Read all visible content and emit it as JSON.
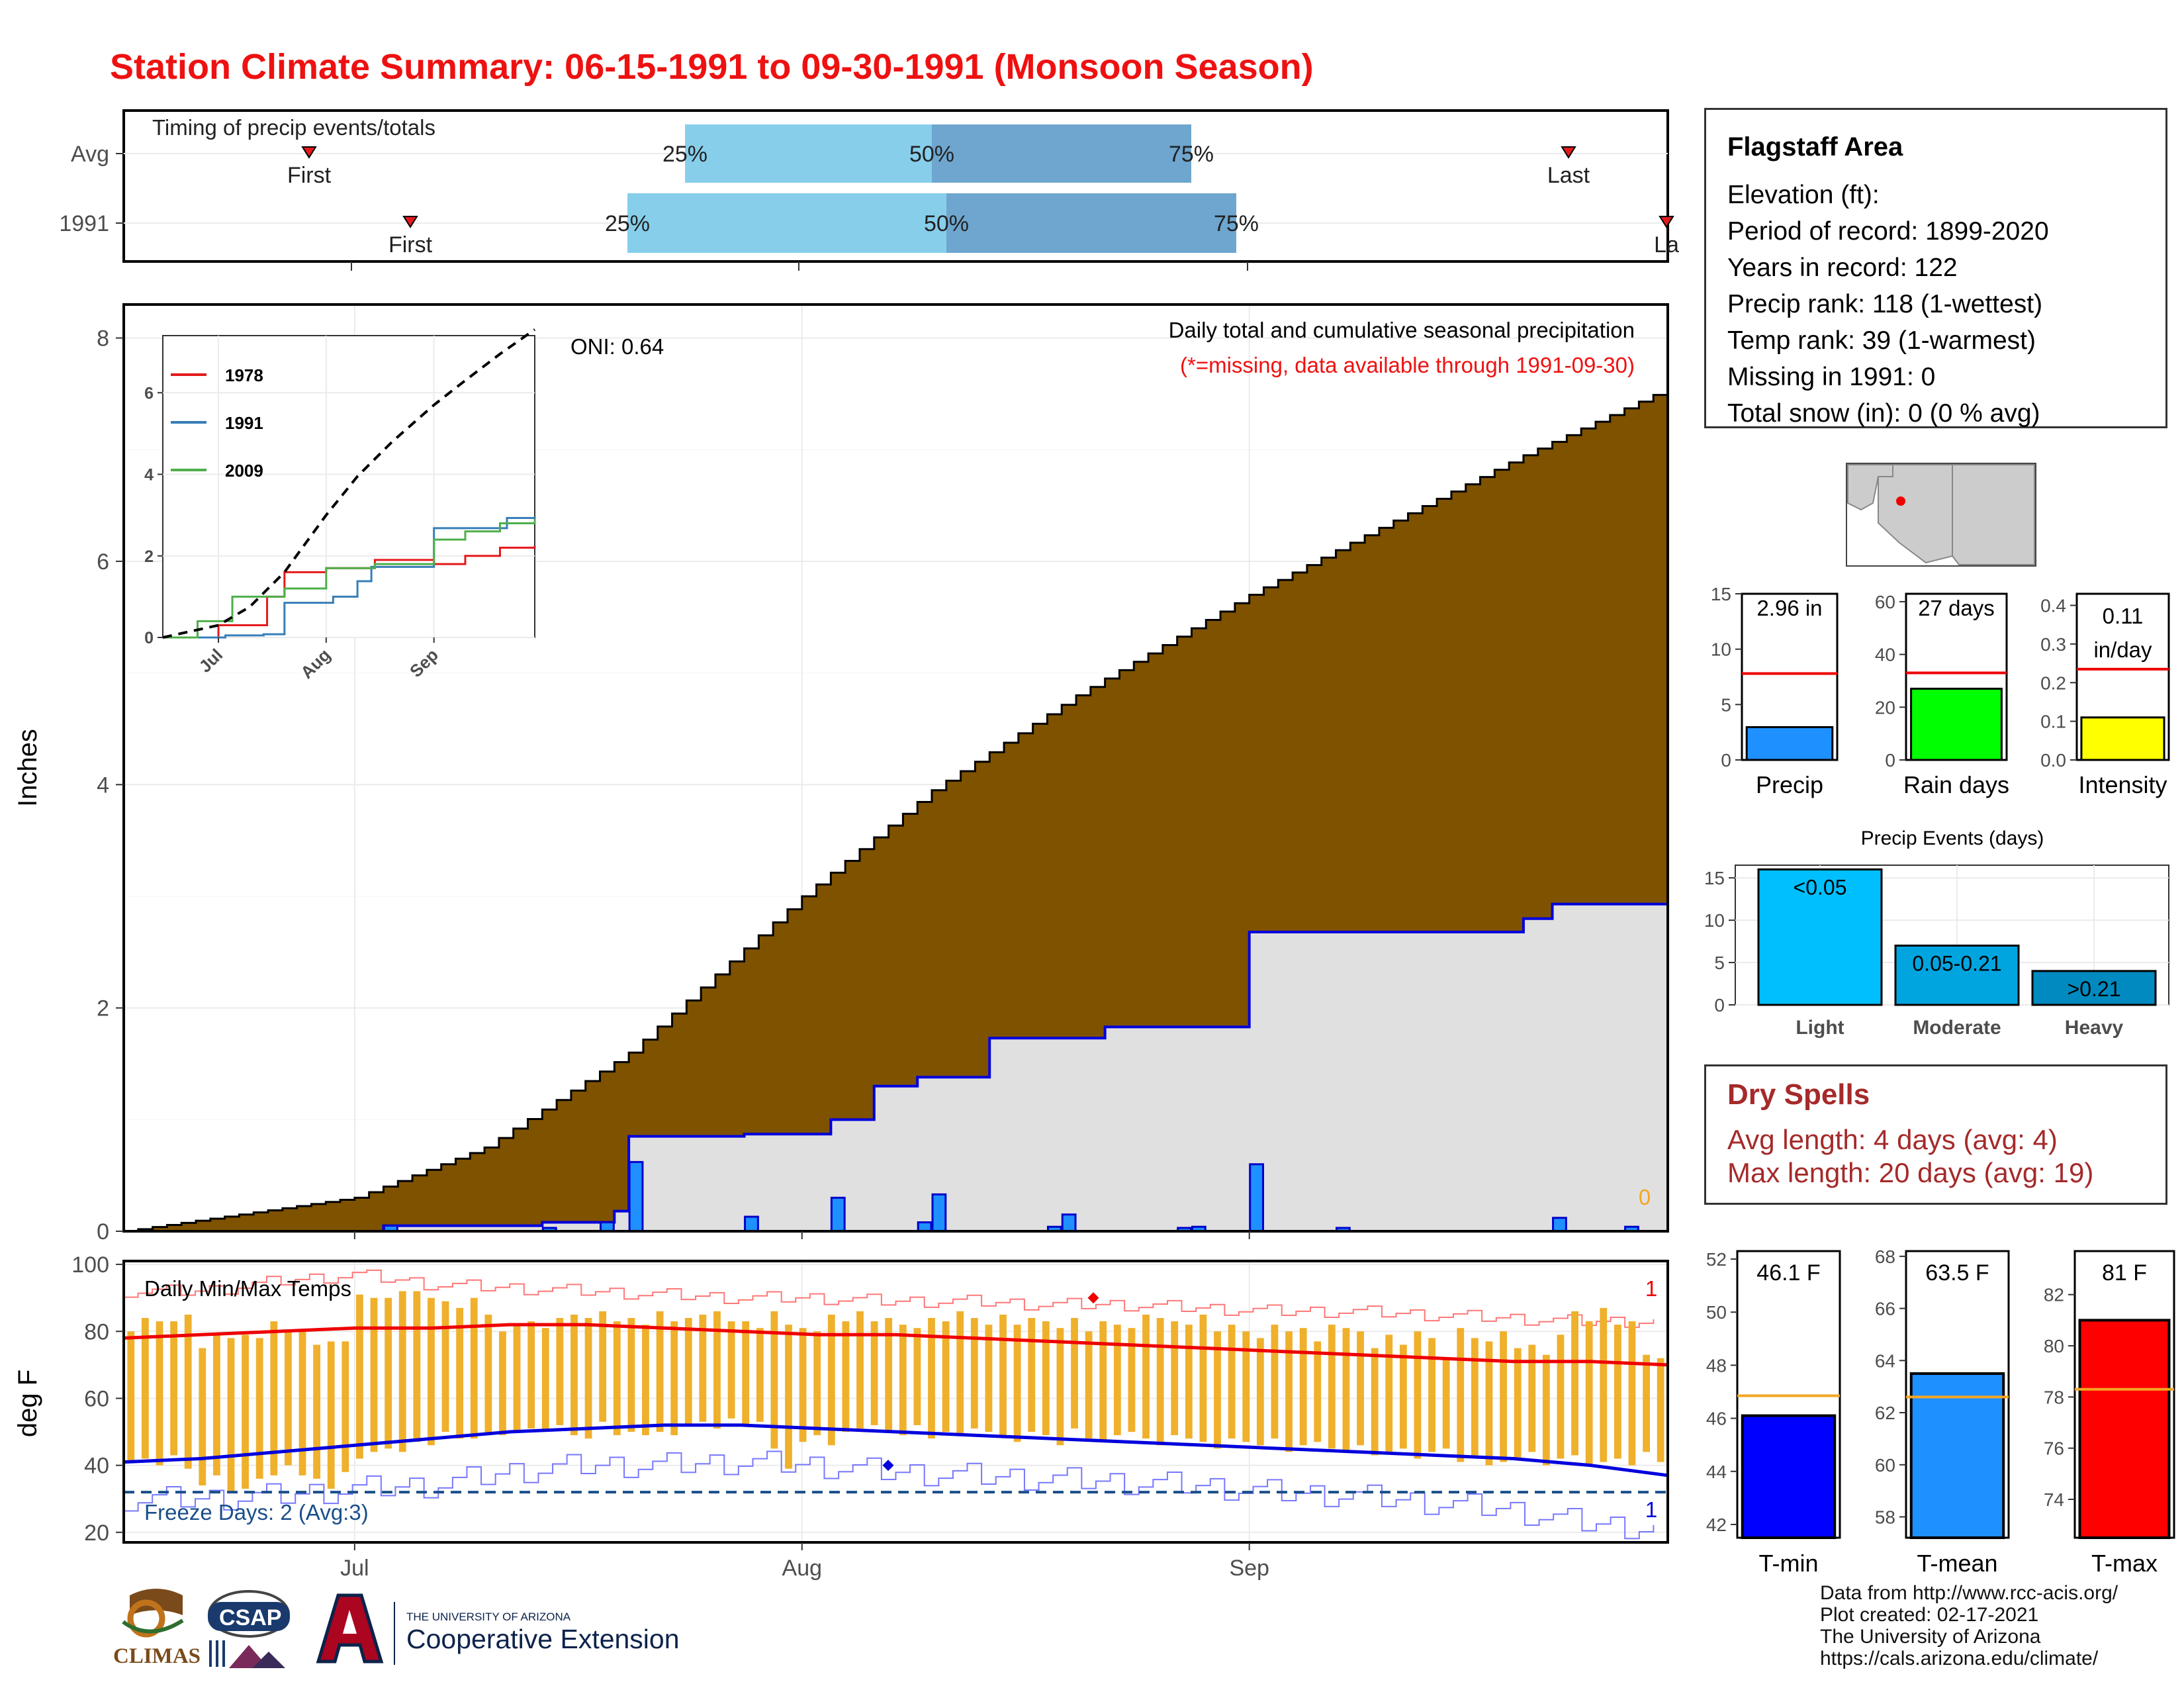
{
  "title": "Station Climate Summary: 06-15-1991 to 09-30-1991 (Monsoon Season)",
  "timing": {
    "title": "Timing of precip events/totals",
    "rows": [
      {
        "label": "Avg",
        "first": "First",
        "last": "Last",
        "q25": "25%",
        "q50": "50%",
        "q75": "75%"
      },
      {
        "label": "1991",
        "first": "First",
        "last": "La",
        "q25": "25%",
        "q50": "50%",
        "q75": "75%"
      }
    ]
  },
  "main_chart": {
    "ylabel": "Inches",
    "annot_title": "Daily total and cumulative seasonal precipitation",
    "annot_missing": "(*=missing, data available through 1991-09-30)",
    "oni": "ONI: 0.64",
    "missing_count": "0",
    "x_ticks": [
      "Jul",
      "Aug",
      "Sep"
    ],
    "y_ticks": [
      "0",
      "2",
      "4",
      "6",
      "8"
    ]
  },
  "inset": {
    "legend": [
      {
        "name": "1978",
        "color": "#e41a1c"
      },
      {
        "name": "1991",
        "color": "#377eb8"
      },
      {
        "name": "2009",
        "color": "#4daf4a"
      }
    ],
    "y_ticks": [
      "0",
      "2",
      "4",
      "6"
    ],
    "x_ticks": [
      "Jul",
      "Aug",
      "Sep"
    ]
  },
  "temp_chart": {
    "ylabel": "deg F",
    "title": "Daily Min/Max Temps",
    "freeze": "Freeze Days: 2 (Avg:3)",
    "count_top": "1",
    "count_bottom": "1",
    "y_ticks": [
      "20",
      "40",
      "60",
      "80",
      "100"
    ]
  },
  "station": {
    "name": "Flagstaff Area",
    "lines": [
      "Elevation (ft):",
      "Period of record: 1899-2020",
      "Years in record: 122",
      "Precip rank: 118 (1-wettest)",
      "Temp rank: 39 (1-warmest)",
      "Missing in 1991: 0",
      "Total snow (in): 0 (0 % avg)"
    ]
  },
  "dry_spells": {
    "title": "Dry Spells",
    "avg": "Avg length: 4 days (avg: 4)",
    "max": "Max length: 20 days (avg: 19)"
  },
  "precip_events": {
    "title": "Precip Events (days)"
  },
  "credits": [
    "Data from http://www.rcc-acis.org/",
    "Plot created: 02-17-2021",
    "The University of Arizona",
    "https://cals.arizona.edu/climate/"
  ],
  "logos": {
    "climas": "CLIMAS",
    "csap": "CSAP",
    "ua_small": "THE UNIVERSITY OF ARIZONA",
    "ua_big": "Cooperative Extension"
  },
  "chart_data": [
    {
      "type": "area",
      "name": "cumulative_precip",
      "x_axis": "date",
      "x_range": [
        "1991-06-15",
        "1991-09-30"
      ],
      "ylim": [
        0,
        8.3
      ],
      "average_cumulative": {
        "x": [
          "1991-06-15",
          "1991-07-01",
          "1991-07-10",
          "1991-07-20",
          "1991-08-01",
          "1991-08-10",
          "1991-08-20",
          "1991-09-01",
          "1991-09-10",
          "1991-09-20",
          "1991-09-30"
        ],
        "y": [
          0.0,
          0.3,
          0.75,
          1.6,
          3.0,
          3.95,
          4.8,
          5.7,
          6.3,
          6.95,
          7.55
        ]
      },
      "cumulative_1991": {
        "x": [
          "1991-06-15",
          "1991-07-03",
          "1991-07-14",
          "1991-07-19",
          "1991-07-20",
          "1991-07-28",
          "1991-08-03",
          "1991-08-06",
          "1991-08-09",
          "1991-08-14",
          "1991-08-22",
          "1991-09-01",
          "1991-09-20",
          "1991-09-22",
          "1991-09-30"
        ],
        "y": [
          0.0,
          0.05,
          0.08,
          0.18,
          0.85,
          0.87,
          1.0,
          1.3,
          1.38,
          1.73,
          1.83,
          2.68,
          2.8,
          2.93,
          2.96
        ]
      },
      "daily_1991": {
        "x": [
          "1991-07-03",
          "1991-07-14",
          "1991-07-18",
          "1991-07-20",
          "1991-07-28",
          "1991-08-03",
          "1991-08-09",
          "1991-08-10",
          "1991-08-18",
          "1991-08-19",
          "1991-08-27",
          "1991-08-28",
          "1991-09-01",
          "1991-09-07",
          "1991-09-22",
          "1991-09-27"
        ],
        "y": [
          0.05,
          0.03,
          0.08,
          0.62,
          0.13,
          0.3,
          0.08,
          0.33,
          0.04,
          0.15,
          0.03,
          0.04,
          0.6,
          0.03,
          0.12,
          0.04
        ]
      }
    },
    {
      "type": "line",
      "name": "inset_cumulative",
      "x_axis": "date",
      "x_range": [
        "1991-06-15",
        "1991-09-30"
      ],
      "ylim": [
        0,
        7.4
      ],
      "series": [
        {
          "name": "1978",
          "x": [
            "1991-06-15",
            "1991-07-01",
            "1991-07-15",
            "1991-07-20",
            "1991-08-01",
            "1991-08-15",
            "1991-09-01",
            "1991-09-10",
            "1991-09-20",
            "1991-09-30"
          ],
          "y": [
            0.0,
            0.3,
            1.0,
            1.6,
            1.7,
            1.9,
            1.8,
            2.0,
            2.2,
            2.25
          ]
        },
        {
          "name": "1991",
          "x": [
            "1991-06-15",
            "1991-07-03",
            "1991-07-14",
            "1991-07-20",
            "1991-08-03",
            "1991-08-10",
            "1991-08-14",
            "1991-09-01",
            "1991-09-22",
            "1991-09-30"
          ],
          "y": [
            0.0,
            0.05,
            0.08,
            0.85,
            1.0,
            1.38,
            1.73,
            2.68,
            2.93,
            2.96
          ]
        },
        {
          "name": "2009",
          "x": [
            "1991-06-15",
            "1991-06-25",
            "1991-07-05",
            "1991-07-20",
            "1991-08-01",
            "1991-08-15",
            "1991-09-01",
            "1991-09-10",
            "1991-09-20",
            "1991-09-30"
          ],
          "y": [
            0.0,
            0.4,
            1.0,
            1.2,
            1.7,
            1.8,
            2.4,
            2.6,
            2.8,
            2.9
          ]
        },
        {
          "name": "average",
          "x": [
            "1991-06-15",
            "1991-07-01",
            "1991-07-10",
            "1991-07-20",
            "1991-08-01",
            "1991-08-10",
            "1991-08-20",
            "1991-09-01",
            "1991-09-10",
            "1991-09-20",
            "1991-09-30"
          ],
          "y": [
            0.0,
            0.3,
            0.75,
            1.6,
            3.0,
            3.95,
            4.8,
            5.7,
            6.3,
            6.95,
            7.55
          ]
        }
      ]
    },
    {
      "type": "bar",
      "name": "daily_temperatures",
      "x_axis": "date",
      "x_range": [
        "1991-06-15",
        "1991-09-30"
      ],
      "ylim": [
        17,
        101
      ],
      "freeze_line": 32,
      "tmax": [
        80,
        84,
        83,
        83,
        85,
        75,
        79,
        78,
        79,
        78,
        83,
        80,
        80,
        76,
        77,
        77,
        91,
        90,
        90,
        92,
        92,
        90,
        89,
        87,
        90,
        85,
        80,
        82,
        83,
        81,
        84,
        85,
        84,
        86,
        83,
        84,
        82,
        86,
        83,
        84,
        85,
        86,
        83,
        83,
        81,
        86,
        82,
        81,
        80,
        85,
        83,
        86,
        83,
        84,
        82,
        81,
        84,
        83,
        86,
        84,
        82,
        85,
        82,
        84,
        83,
        81,
        84,
        80,
        83,
        82,
        81,
        85,
        84,
        83,
        82,
        85,
        80,
        82,
        80,
        78,
        82,
        80,
        81,
        77,
        82,
        81,
        80,
        75,
        79,
        76,
        80,
        78,
        72,
        81,
        78,
        77,
        80,
        75,
        76,
        73,
        79,
        86,
        83,
        87,
        82,
        83,
        73,
        72
      ],
      "tmin": [
        41,
        42,
        40,
        43,
        39,
        34,
        37,
        32,
        33,
        36,
        37,
        40,
        37,
        36,
        33,
        38,
        42,
        44,
        45,
        44,
        47,
        46,
        50,
        48,
        48,
        49,
        49,
        50,
        51,
        50,
        52,
        49,
        48,
        53,
        49,
        50,
        49,
        50,
        49,
        52,
        53,
        51,
        54,
        52,
        53,
        45,
        39,
        47,
        49,
        46,
        50,
        51,
        52,
        50,
        49,
        52,
        48,
        50,
        49,
        51,
        50,
        49,
        47,
        50,
        49,
        46,
        51,
        48,
        47,
        49,
        50,
        48,
        46,
        49,
        48,
        47,
        45,
        48,
        47,
        46,
        48,
        44,
        46,
        47,
        45,
        44,
        46,
        43,
        44,
        45,
        42,
        44,
        45,
        41,
        43,
        40,
        41,
        42,
        44,
        40,
        42,
        43,
        40,
        41,
        42,
        40,
        44,
        41
      ],
      "avg_tmax": [
        78,
        79,
        80,
        81,
        81,
        82,
        82,
        81,
        80,
        79,
        79,
        78,
        77,
        76,
        75,
        74,
        73,
        72,
        71,
        71,
        70
      ],
      "avg_tmin": [
        41,
        42,
        44,
        46,
        48,
        50,
        51,
        52,
        52,
        51,
        50,
        49,
        48,
        47,
        46,
        45,
        44,
        43,
        42,
        40,
        37
      ],
      "record_max": [
        92,
        92,
        95,
        97,
        94,
        93,
        92,
        91,
        90,
        90,
        89,
        89,
        88,
        88,
        87,
        86,
        86,
        85,
        84,
        83,
        83
      ],
      "record_min": [
        30,
        30,
        31,
        33,
        34,
        38,
        40,
        40,
        41,
        40,
        38,
        37,
        36,
        35,
        34,
        32,
        31,
        29,
        27,
        23,
        21
      ]
    },
    {
      "type": "bar",
      "name": "season_totals",
      "categories": [
        "Precip",
        "Rain days",
        "Intensity"
      ],
      "values": [
        2.96,
        27,
        0.11
      ],
      "averages": [
        7.8,
        33,
        0.235
      ],
      "labels": [
        "2.96 in",
        "27 days",
        "0.11 in/day"
      ],
      "ylims": [
        [
          0,
          15
        ],
        [
          0,
          63
        ],
        [
          0,
          0.43
        ]
      ],
      "y_ticks": [
        [
          "0",
          "5",
          "10",
          "15"
        ],
        [
          "0",
          "20",
          "40",
          "60"
        ],
        [
          "0.0",
          "0.1",
          "0.2",
          "0.3",
          "0.4"
        ]
      ],
      "colors": [
        "#1e90ff",
        "#00ff00",
        "#ffff00"
      ]
    },
    {
      "type": "bar",
      "name": "precip_events",
      "title": "Precip Events (days)",
      "categories": [
        "Light",
        "Moderate",
        "Heavy"
      ],
      "values": [
        16,
        7,
        4
      ],
      "labels": [
        "<0.05",
        "0.05-0.21",
        ">0.21"
      ],
      "ylim": [
        0,
        16.5
      ],
      "y_ticks": [
        "0",
        "5",
        "10",
        "15"
      ],
      "colors": [
        "#00bfff",
        "#00a5e0",
        "#008ac0"
      ]
    },
    {
      "type": "bar",
      "name": "temperature_means",
      "categories": [
        "T-min",
        "T-mean",
        "T-max"
      ],
      "values": [
        46.1,
        63.5,
        81
      ],
      "averages": [
        46.85,
        62.6,
        78.3
      ],
      "labels": [
        "46.1 F",
        "63.5 F",
        "81 F"
      ],
      "ylims": [
        [
          41.5,
          52.3
        ],
        [
          57.2,
          68.2
        ],
        [
          72.5,
          83.7
        ]
      ],
      "y_ticks": [
        [
          "42",
          "44",
          "46",
          "48",
          "50",
          "52"
        ],
        [
          "58",
          "60",
          "62",
          "64",
          "66",
          "68"
        ],
        [
          "74",
          "76",
          "78",
          "80",
          "82"
        ]
      ],
      "colors": [
        "#0000ff",
        "#1e90ff",
        "#ff0000"
      ]
    }
  ]
}
